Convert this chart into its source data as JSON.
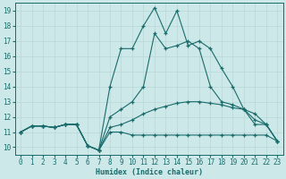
{
  "background_color": "#cce8e8",
  "grid_color": "#e8e8e8",
  "line_color": "#1a6b6b",
  "xlabel": "Humidex (Indice chaleur)",
  "xlim": [
    -0.5,
    23.5
  ],
  "ylim": [
    9.5,
    19.5
  ],
  "xticks": [
    0,
    1,
    2,
    3,
    4,
    5,
    6,
    7,
    8,
    9,
    10,
    11,
    12,
    13,
    14,
    15,
    16,
    17,
    18,
    19,
    20,
    21,
    22,
    23
  ],
  "yticks": [
    10,
    11,
    12,
    13,
    14,
    15,
    16,
    17,
    18,
    19
  ],
  "lines": [
    {
      "x": [
        0,
        1,
        2,
        3,
        4,
        5,
        6,
        7,
        8,
        9,
        10,
        11,
        12,
        13,
        14,
        15,
        16,
        17,
        18,
        19,
        20,
        21,
        22,
        23
      ],
      "y": [
        11,
        11.4,
        11.4,
        11.3,
        11.5,
        11.5,
        10.1,
        9.8,
        11.0,
        11.0,
        10.8,
        10.8,
        10.8,
        10.8,
        10.8,
        10.8,
        10.8,
        10.8,
        10.8,
        10.8,
        10.8,
        10.8,
        10.8,
        10.4
      ]
    },
    {
      "x": [
        0,
        1,
        2,
        3,
        4,
        5,
        6,
        7,
        8,
        9,
        10,
        11,
        12,
        13,
        14,
        15,
        16,
        17,
        18,
        19,
        20,
        21,
        22,
        23
      ],
      "y": [
        11,
        11.4,
        11.4,
        11.3,
        11.5,
        11.5,
        10.1,
        9.8,
        11.3,
        11.5,
        11.8,
        12.2,
        12.5,
        12.7,
        12.9,
        13.0,
        13.0,
        12.9,
        12.8,
        12.6,
        12.5,
        12.2,
        11.5,
        10.4
      ]
    },
    {
      "x": [
        0,
        1,
        2,
        3,
        4,
        5,
        6,
        7,
        8,
        9,
        10,
        11,
        12,
        13,
        14,
        15,
        16,
        17,
        18,
        19,
        20,
        21,
        22,
        23
      ],
      "y": [
        11,
        11.4,
        11.4,
        11.3,
        11.5,
        11.5,
        10.1,
        9.8,
        12.0,
        12.5,
        13.0,
        14.0,
        17.5,
        16.5,
        16.7,
        17.0,
        16.5,
        14.0,
        13.0,
        12.8,
        12.5,
        11.5,
        11.5,
        10.4
      ]
    },
    {
      "x": [
        0,
        1,
        2,
        3,
        4,
        5,
        6,
        7,
        8,
        9,
        10,
        11,
        12,
        13,
        14,
        15,
        16,
        17,
        18,
        19,
        20,
        21,
        22,
        23
      ],
      "y": [
        11,
        11.4,
        11.4,
        11.3,
        11.5,
        11.5,
        10.1,
        9.8,
        14.0,
        16.5,
        16.5,
        18.0,
        19.2,
        17.5,
        19.0,
        16.7,
        17.0,
        16.5,
        15.2,
        14.0,
        12.5,
        11.8,
        11.5,
        10.4
      ]
    }
  ]
}
